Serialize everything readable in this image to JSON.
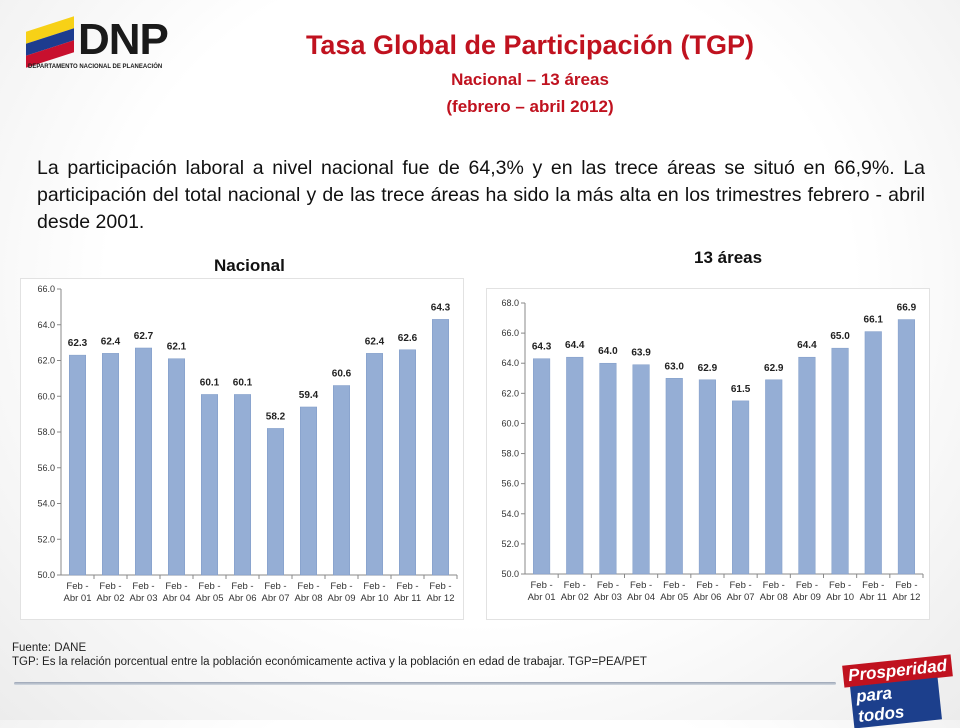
{
  "header": {
    "logo_text": "DNP",
    "logo_subtext": "DEPARTAMENTO NACIONAL DE PLANEACIÓN",
    "title": "Tasa Global de Participación (TGP)",
    "subtitle": "Nacional – 13 áreas",
    "subtitle2": "(febrero – abril 2012)"
  },
  "paragraph": "La participación laboral a nivel nacional fue de 64,3% y en las trece áreas se situó en 66,9%. La participación del total nacional y de las trece áreas ha sido la más alta en los trimestres febrero - abril desde 2001.",
  "colors": {
    "title": "#c0121f",
    "bar": "#95aed5",
    "bar_edge": "#7f9bc7"
  },
  "chart_data": [
    {
      "type": "bar",
      "title": "Nacional",
      "categories": [
        "Feb - Abr 01",
        "Feb - Abr 02",
        "Feb - Abr 03",
        "Feb - Abr 04",
        "Feb - Abr 05",
        "Feb - Abr 06",
        "Feb - Abr 07",
        "Feb - Abr 08",
        "Feb - Abr 09",
        "Feb - Abr 10",
        "Feb - Abr 11",
        "Feb - Abr 12"
      ],
      "values": [
        62.3,
        62.4,
        62.7,
        62.1,
        60.1,
        60.1,
        58.2,
        59.4,
        60.6,
        62.4,
        62.6,
        64.3
      ],
      "data_labels": [
        "62.3",
        "62.4",
        "62.7",
        "62.1",
        "60.1",
        "60.1",
        "58.2",
        "59.4",
        "60.6",
        "62.4",
        "62.6",
        "64.3"
      ],
      "ylim": [
        50,
        66
      ],
      "yticks": [
        "50.0",
        "52.0",
        "54.0",
        "56.0",
        "58.0",
        "60.0",
        "62.0",
        "64.0",
        "66.0"
      ],
      "ytick_values": [
        50,
        52,
        54,
        56,
        58,
        60,
        62,
        64,
        66
      ],
      "grid": false
    },
    {
      "type": "bar",
      "title": "13 áreas",
      "categories": [
        "Feb - Abr 01",
        "Feb - Abr 02",
        "Feb - Abr 03",
        "Feb - Abr 04",
        "Feb - Abr 05",
        "Feb - Abr 06",
        "Feb - Abr 07",
        "Feb - Abr 08",
        "Feb - Abr 09",
        "Feb - Abr 10",
        "Feb - Abr 11",
        "Feb - Abr 12"
      ],
      "values": [
        64.3,
        64.4,
        64.0,
        63.9,
        63.0,
        62.9,
        61.5,
        62.9,
        64.4,
        65.0,
        66.1,
        66.9
      ],
      "data_labels": [
        "64.3",
        "64.4",
        "64.0",
        "63.9",
        "63.0",
        "62.9",
        "61.5",
        "62.9",
        "64.4",
        "65.0",
        "66.1",
        "66.9"
      ],
      "ylim": [
        50,
        68
      ],
      "yticks": [
        "50.0",
        "52.0",
        "54.0",
        "56.0",
        "58.0",
        "60.0",
        "62.0",
        "64.0",
        "66.0",
        "68.0"
      ],
      "ytick_values": [
        50,
        52,
        54,
        56,
        58,
        60,
        62,
        64,
        66,
        68
      ],
      "grid": false
    }
  ],
  "footnote": {
    "source": "Fuente: DANE",
    "definition": "TGP: Es la relación porcentual entre la población económicamente activa y la población  en edad de trabajar. TGP=PEA/PET"
  },
  "brand": {
    "line1": "Prosperidad",
    "line2": "para todos"
  }
}
